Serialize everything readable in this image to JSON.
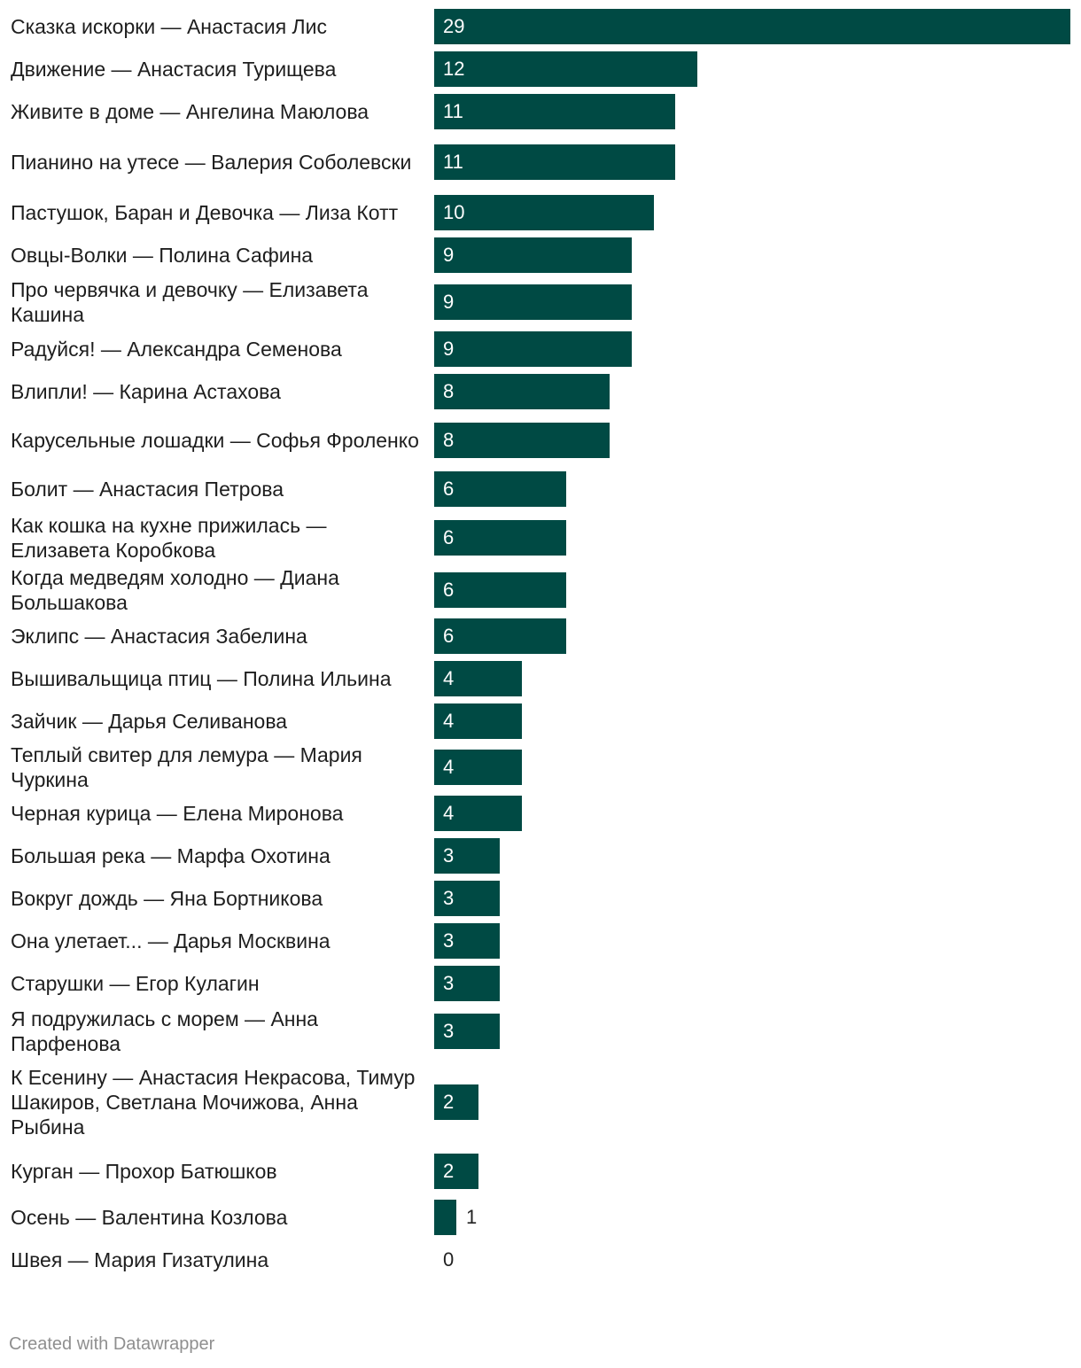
{
  "colors": {
    "bar": "#004a44"
  },
  "footer": {
    "text": "Created with Datawrapper"
  },
  "chart_data": {
    "type": "bar",
    "orientation": "horizontal",
    "categories": [
      "Сказка искорки — Анастасия Лис",
      "Движение — Анастасия Турищева",
      "Живите в доме — Ангелина Маюлова",
      "Пианино на утесе — Валерия Соболевски",
      "Пастушок, Баран и Девочка — Лиза Котт",
      "Овцы-Волки — Полина Сафина",
      "Про червячка и девочку — Елизавета Кашина",
      "Радуйся! — Александра Семенова",
      "Влипли! — Карина Астахова",
      "Карусельные лошадки — Софья Фроленко",
      "Болит — Анастасия Петрова",
      "Как кошка на кухне прижилась — Елизавета Коробкова",
      "Когда медведям холодно — Диана Большакова",
      "Эклипс — Анастасия Забелина",
      "Вышивальщица птиц — Полина Ильина",
      "Зайчик — Дарья Селиванова",
      "Теплый свитер для лемура — Мария Чуркина",
      "Черная курица — Елена Миронова",
      "Большая река — Марфа Охотина",
      "Вокруг дождь — Яна Бортникова",
      "Она улетает... — Дарья Москвина",
      "Старушки — Егор Кулагин",
      "Я подружилась с морем — Анна Парфенова",
      "К Есенину — Анастасия Некрасова, Тимур Шакиров, Светлана Мочижова, Анна Рыбина",
      "Курган — Прохор Батюшков",
      "Осень — Валентина Козлова",
      "Швея — Мария Гизатулина"
    ],
    "values": [
      29,
      12,
      11,
      11,
      10,
      9,
      9,
      9,
      8,
      8,
      6,
      6,
      6,
      6,
      4,
      4,
      4,
      4,
      3,
      3,
      3,
      3,
      3,
      2,
      2,
      1,
      0
    ],
    "value_labels": true,
    "xlim": [
      0,
      29
    ],
    "grid": false,
    "legend": "none"
  }
}
